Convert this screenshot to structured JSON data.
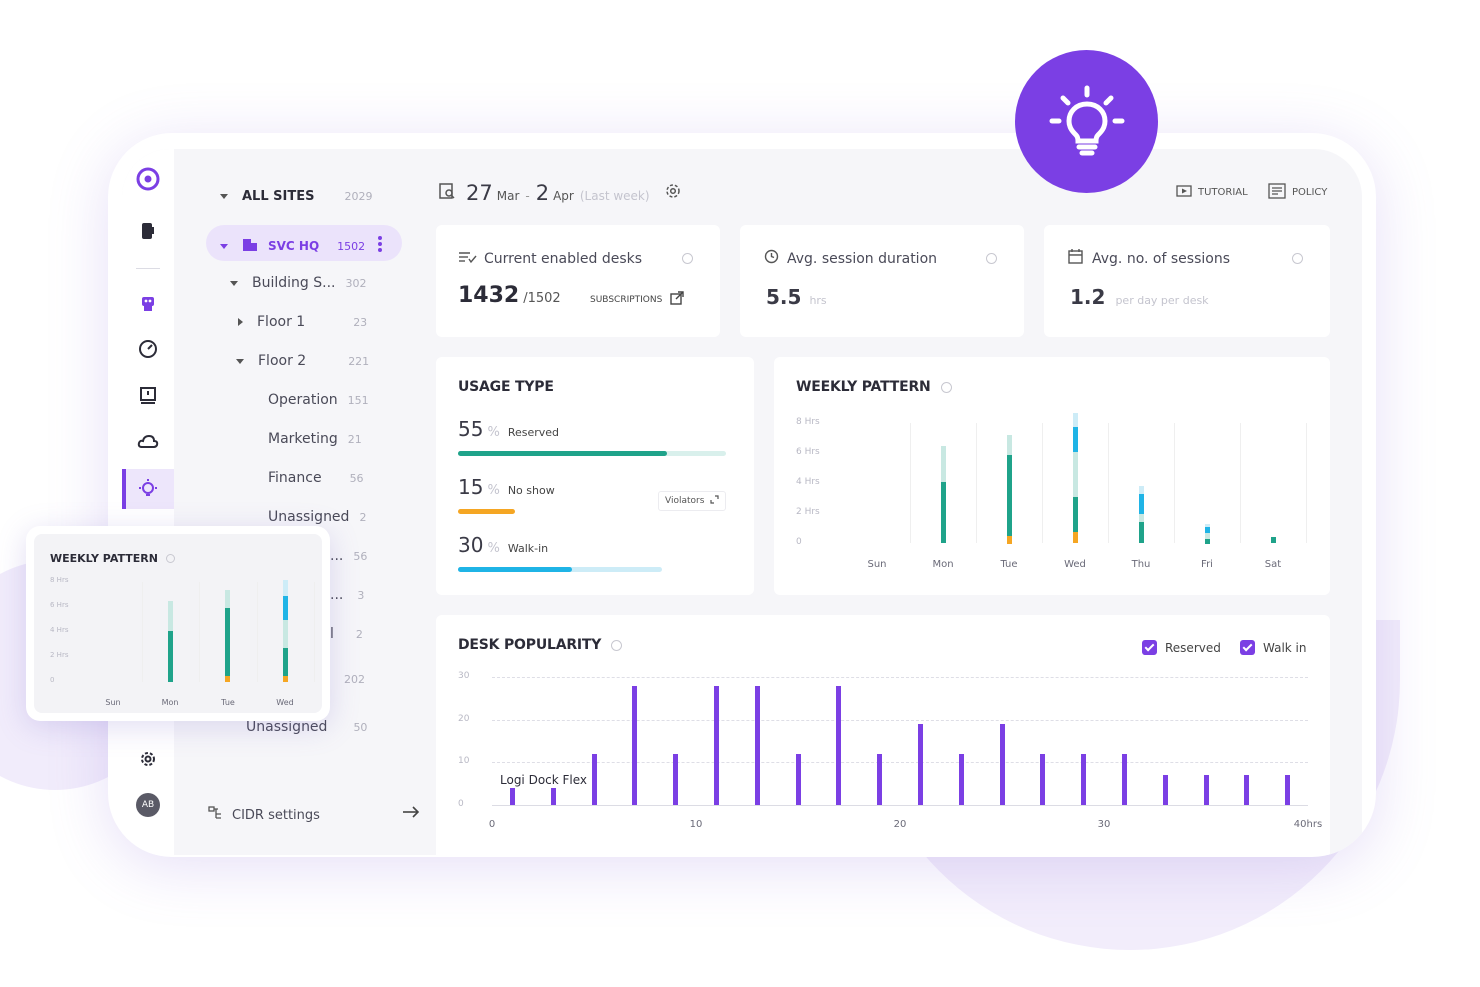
{
  "sidebar": {
    "avatar_initials": "AB",
    "icons": [
      "logo-icon",
      "phone-icon",
      "robot-icon",
      "gauge-icon",
      "alert-icon",
      "cloud-icon",
      "bulb-icon",
      "gear-icon"
    ]
  },
  "tree": {
    "all_sites": {
      "label": "ALL SITES",
      "count": "2029"
    },
    "svc_hq": {
      "label": "SVC HQ",
      "count": "1502"
    },
    "building": {
      "label": "Building S...",
      "count": "302"
    },
    "floor1": {
      "label": "Floor 1",
      "count": "23"
    },
    "floor2": {
      "label": "Floor 2",
      "count": "221"
    },
    "operation": {
      "label": "Operation",
      "count": "151"
    },
    "marketing": {
      "label": "Marketing",
      "count": "21"
    },
    "finance": {
      "label": "Finance",
      "count": "56"
    },
    "unassigned": {
      "label": "Unassigned",
      "count": "2"
    },
    "partial_rows": [
      {
        "label": "...",
        "count": "56"
      },
      {
        "label": "...",
        "count": "3"
      },
      {
        "label": "l",
        "count": "2"
      },
      {
        "label": "",
        "count": "202"
      }
    ],
    "unassigned2": {
      "label": "Unassigned",
      "count": "50"
    },
    "cidr": "CIDR settings"
  },
  "header": {
    "date_start_day": "27",
    "date_start_month": "Mar",
    "date_sep": "-",
    "date_end_day": "2",
    "date_end_month": "Apr",
    "date_note": "(Last week)",
    "tutorial": "TUTORIAL",
    "policy": "POLICY"
  },
  "stats": {
    "enabled": {
      "title": "Current enabled desks",
      "value": "1432",
      "total": "/1502",
      "link": "SUBSCRIPTIONS"
    },
    "duration": {
      "title": "Avg. session duration",
      "value": "5.5",
      "unit": "hrs"
    },
    "sessions": {
      "title": "Avg. no. of sessions",
      "value": "1.2",
      "unit": "per day per desk"
    }
  },
  "usage": {
    "title": "USAGE TYPE",
    "items": [
      {
        "value": "55",
        "pct": "%",
        "label": "Reserved",
        "color": "#1fa38a",
        "fraction": 0.55
      },
      {
        "value": "15",
        "pct": "%",
        "label": "No show",
        "color": "#f5a623",
        "fraction": 0.15
      },
      {
        "value": "30",
        "pct": "%",
        "label": "Walk-in",
        "color": "#1fb4e6",
        "fraction": 0.3
      }
    ],
    "violators": "Violators"
  },
  "weekly": {
    "title": "WEEKLY PATTERN",
    "yticks": [
      "8 Hrs",
      "6 Hrs",
      "4 Hrs",
      "2 Hrs",
      "0"
    ],
    "days": [
      "Sun",
      "Mon",
      "Tue",
      "Wed",
      "Thu",
      "Fri",
      "Sat"
    ]
  },
  "desk": {
    "title": "DESK POPULARITY",
    "legend": [
      "Reserved",
      "Walk in"
    ],
    "yticks": [
      "30",
      "20",
      "10",
      "0"
    ],
    "xticks": [
      "0",
      "10",
      "20",
      "30",
      "40hrs"
    ],
    "tooltip": "Logi Dock Flex"
  },
  "floating": {
    "title": "WEEKLY PATTERN",
    "yticks": [
      "8 Hrs",
      "6 Hrs",
      "4 Hrs",
      "2 Hrs",
      "0"
    ],
    "days": [
      "Sun",
      "Mon",
      "Tue",
      "Wed"
    ]
  },
  "chart_data": [
    {
      "type": "bar",
      "title": "WEEKLY PATTERN",
      "categories": [
        "Sun",
        "Mon",
        "Tue",
        "Wed",
        "Thu",
        "Fri",
        "Sat"
      ],
      "ylim": [
        0,
        8
      ],
      "series": [
        {
          "name": "",
          "color": "#f5a623",
          "values": [
            0,
            0,
            0.5,
            0.8,
            0,
            0,
            0
          ]
        },
        {
          "name": "",
          "color": "#1fa38a",
          "values": [
            0,
            4.1,
            5.4,
            2.3,
            1.4,
            0.3,
            0.4
          ]
        },
        {
          "name": "",
          "color": "#c8e8e2",
          "values": [
            0,
            2.4,
            1.3,
            3.0,
            0.6,
            0.4,
            0
          ]
        },
        {
          "name": "",
          "color": "#1fb4e6",
          "values": [
            0,
            0,
            0,
            1.7,
            1.3,
            0.4,
            0
          ]
        },
        {
          "name": "",
          "color": "#cdecf7",
          "values": [
            0,
            0,
            0,
            0.9,
            0.5,
            0.2,
            0
          ]
        }
      ]
    },
    {
      "type": "bar",
      "title": "DESK POPULARITY",
      "xlim": [
        0,
        40
      ],
      "ylim": [
        0,
        30
      ],
      "x": [
        1,
        3,
        5,
        7,
        9,
        11,
        13,
        15,
        17,
        19,
        21,
        23,
        25,
        27,
        29,
        31,
        33,
        35,
        37,
        39
      ],
      "values": [
        4,
        4,
        12,
        28,
        12,
        28,
        28,
        12,
        28,
        12,
        19,
        12,
        19,
        12,
        12,
        12,
        7,
        7,
        7,
        7
      ],
      "legend": [
        "Reserved",
        "Walk in"
      ]
    },
    {
      "type": "bar",
      "title": "WEEKLY PATTERN",
      "categories": [
        "Sun",
        "Mon",
        "Tue",
        "Wed"
      ],
      "ylim": [
        0,
        8
      ],
      "series": [
        {
          "name": "",
          "color": "#f5a623",
          "values": [
            0,
            0,
            0.5,
            0.5
          ]
        },
        {
          "name": "",
          "color": "#1fa38a",
          "values": [
            0,
            4.1,
            5.5,
            2.3
          ]
        },
        {
          "name": "",
          "color": "#c8e8e2",
          "values": [
            0,
            2.4,
            1.4,
            2.2
          ]
        },
        {
          "name": "",
          "color": "#1fb4e6",
          "values": [
            0,
            0,
            0,
            1.9
          ]
        },
        {
          "name": "",
          "color": "#cdecf7",
          "values": [
            0,
            0,
            0,
            1.3
          ]
        }
      ]
    }
  ]
}
